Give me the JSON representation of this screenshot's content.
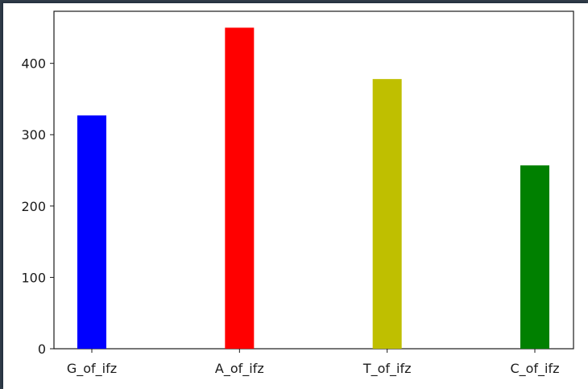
{
  "chart_data": {
    "type": "bar",
    "title": "",
    "xlabel": "",
    "ylabel": "",
    "categories": [
      "G_of_ifz",
      "A_of_ifz",
      "T_of_ifz",
      "C_of_ifz"
    ],
    "values": [
      327,
      450,
      378,
      257
    ],
    "colors": [
      "#0000ff",
      "#ff0000",
      "#bfbf00",
      "#008000"
    ],
    "ylim": [
      0,
      473
    ],
    "yticks": [
      0,
      100,
      200,
      300,
      400
    ],
    "ytick_labels": [
      "0",
      "100",
      "200",
      "300",
      "400"
    ],
    "grid": false,
    "legend": "none"
  }
}
